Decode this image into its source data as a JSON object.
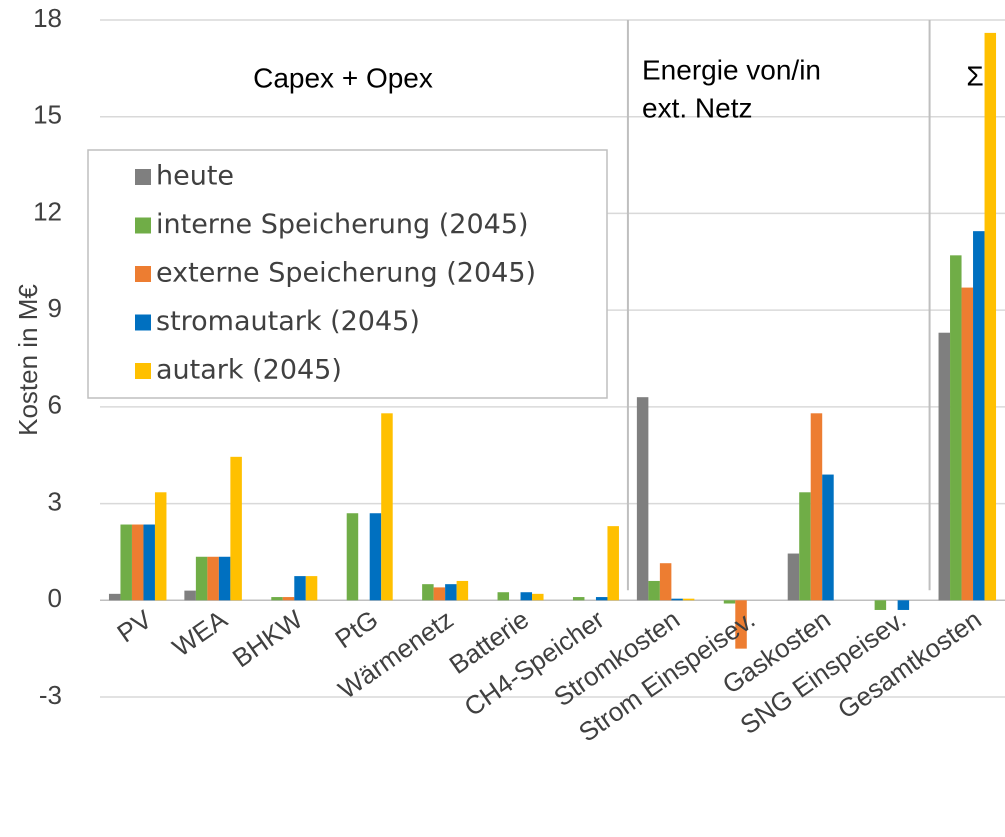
{
  "chart_data": {
    "type": "bar",
    "y_axis_label": "Kosten in M€",
    "annotations": [
      "Capex + Opex",
      "Energie von/in",
      "ext. Netz",
      "Σ"
    ],
    "categories": [
      "PV",
      "WEA",
      "BHKW",
      "PtG",
      "Wärmenetz",
      "Batterie",
      "CH4-Speicher",
      "Stromkosten",
      "Strom Einspeisev.",
      "Gaskosten",
      "SNG Einspeisev.",
      "Gesamtkosten"
    ],
    "series": [
      {
        "name": "heute",
        "color": "#7f7f7f",
        "values": [
          0.2,
          0.3,
          0,
          0,
          0,
          0,
          0,
          6.3,
          0,
          1.45,
          0,
          8.3
        ]
      },
      {
        "name": "interne Speicherung (2045)",
        "color": "#70ad47",
        "values": [
          2.35,
          1.35,
          0.1,
          2.7,
          0.5,
          0.25,
          0.1,
          0.6,
          -0.1,
          3.35,
          -0.3,
          10.7
        ]
      },
      {
        "name": "externe Speicherung (2045)",
        "color": "#ed7d31",
        "values": [
          2.35,
          1.35,
          0.1,
          0,
          0.4,
          0,
          0,
          1.15,
          -1.5,
          5.8,
          0,
          9.7
        ]
      },
      {
        "name": "stromautark (2045)",
        "color": "#0070c0",
        "values": [
          2.35,
          1.35,
          0.75,
          2.7,
          0.5,
          0.25,
          0.1,
          0.05,
          0,
          3.9,
          -0.3,
          11.45
        ]
      },
      {
        "name": "autark (2045)",
        "color": "#ffc000",
        "values": [
          3.35,
          4.45,
          0.75,
          5.8,
          0.6,
          0.2,
          2.3,
          0.05,
          0,
          0,
          0,
          17.6
        ]
      }
    ],
    "ylim": [
      -3,
      18
    ],
    "yticks": [
      -3,
      0,
      3,
      6,
      9,
      12,
      15,
      18
    ],
    "grid": true
  }
}
